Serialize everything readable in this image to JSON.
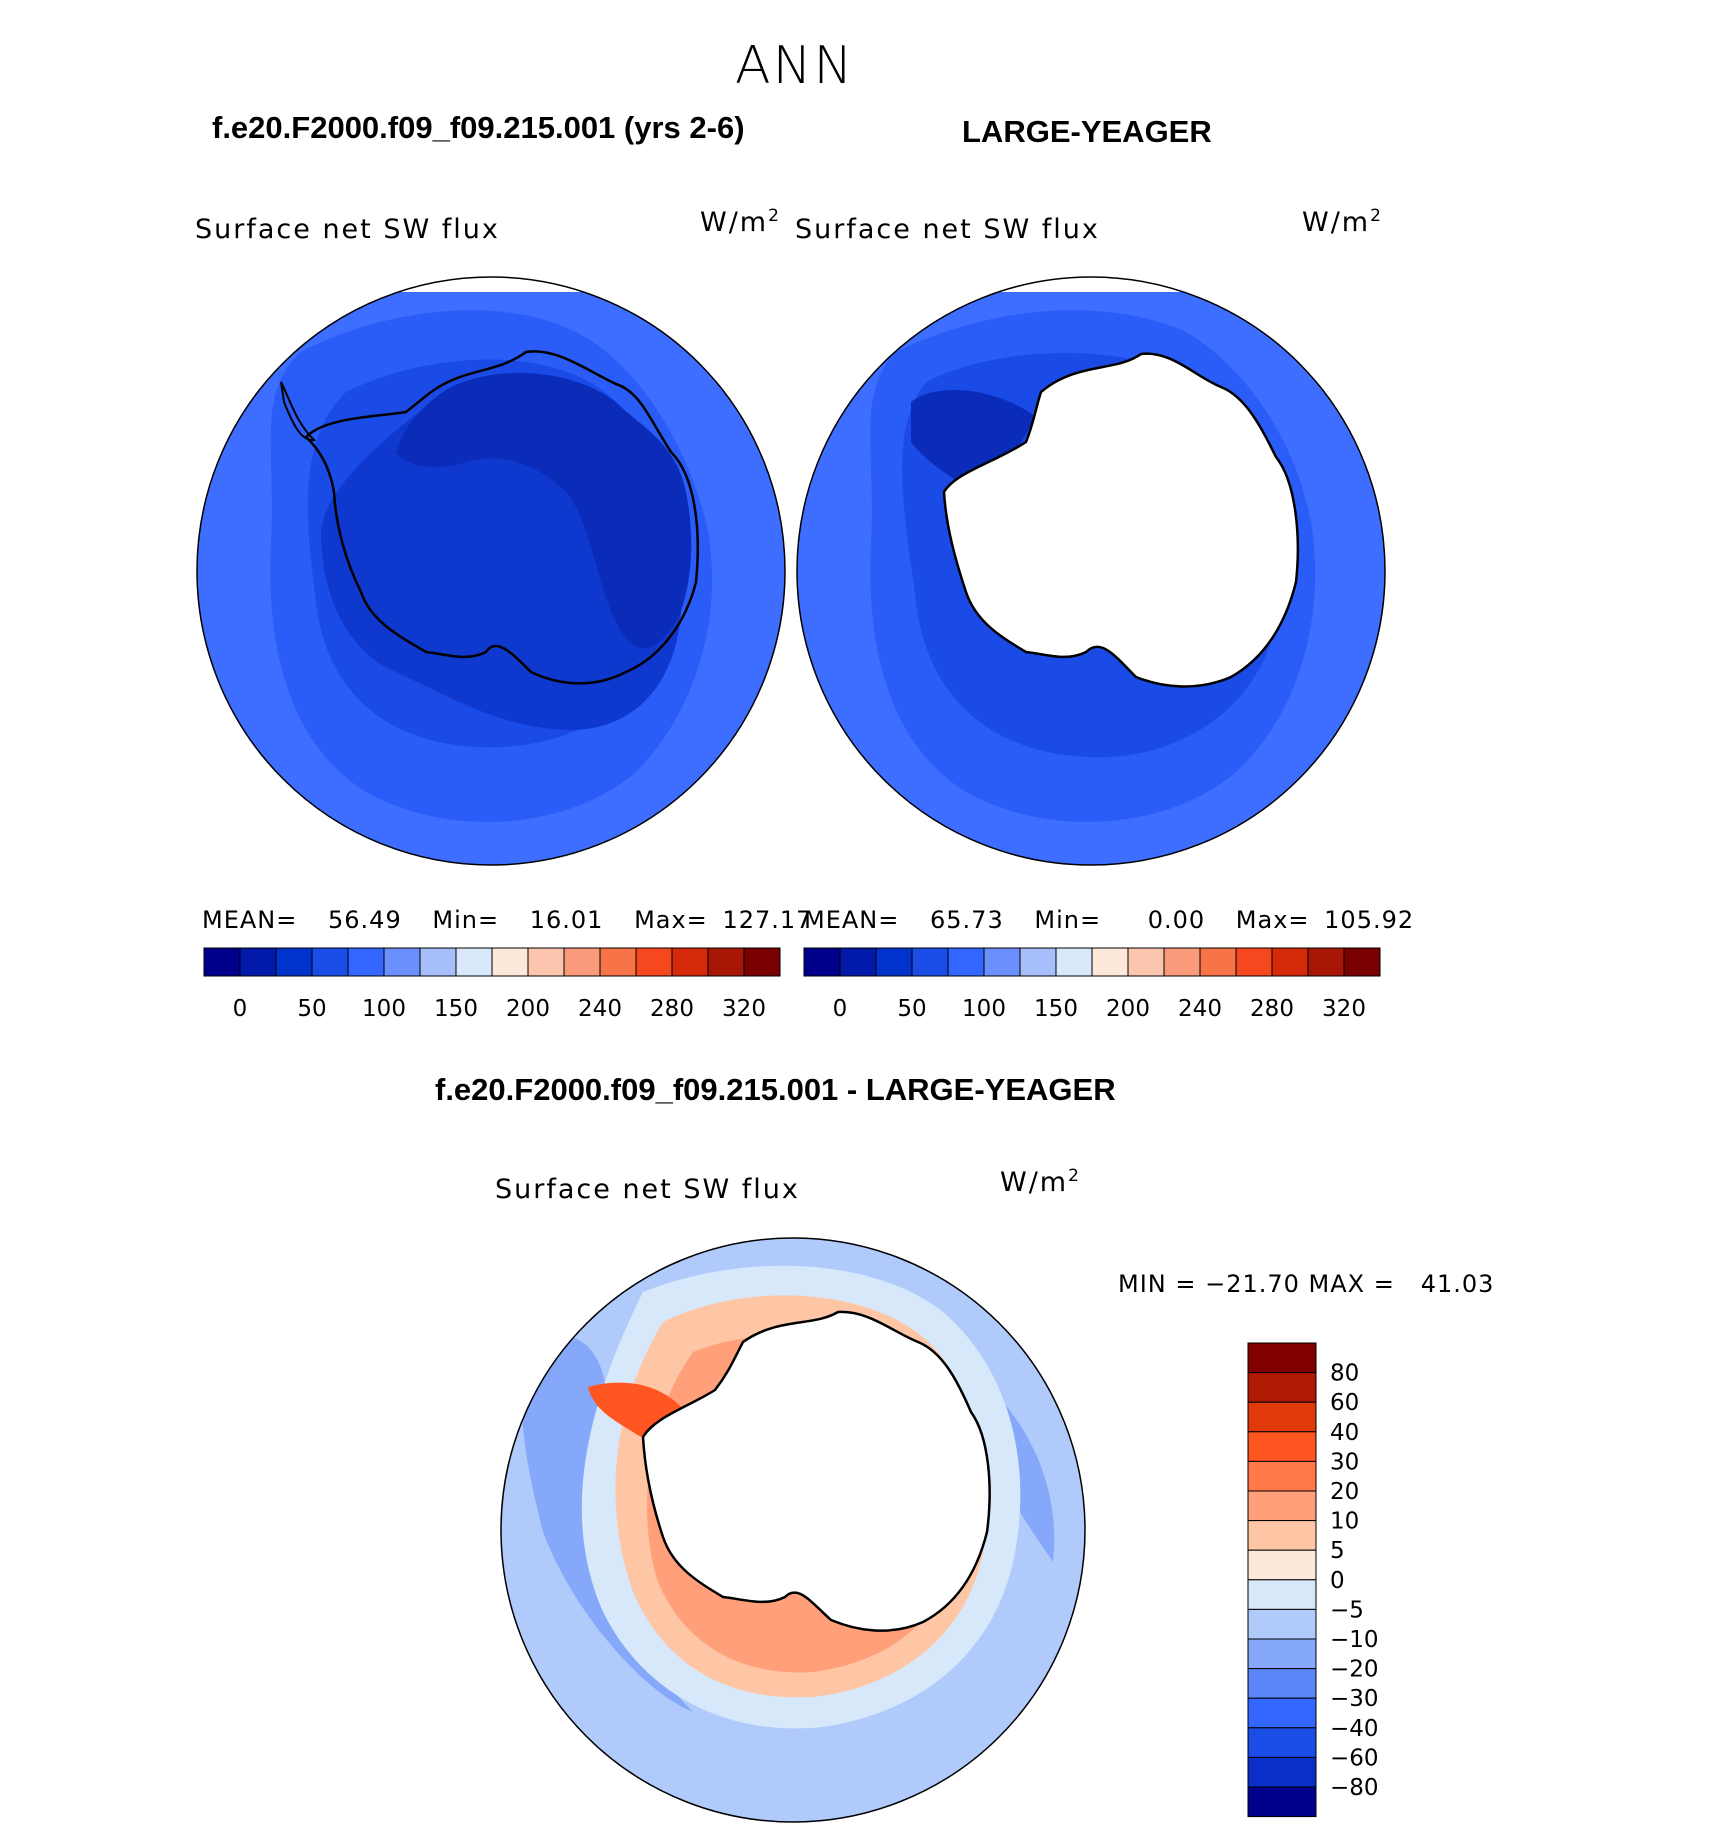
{
  "figure": {
    "season": "ANN",
    "left_case": "f.e20.F2000.f09_f09.215.001 (yrs 2-6)",
    "right_case": "LARGE-YEAGER",
    "diff_title": "f.e20.F2000.f09_f09.215.001 - LARGE-YEAGER"
  },
  "panels": {
    "left": {
      "variable": "Surface net SW flux",
      "units_base": "W/m",
      "units_exp": "2",
      "mean_label": "MEAN=",
      "mean": "56.49",
      "min_label": "Min=",
      "min": "16.01",
      "max_label": "Max=",
      "max": "127.17"
    },
    "right": {
      "variable": "Surface net SW flux",
      "units_base": "W/m",
      "units_exp": "2",
      "mean_label": "MEAN=",
      "mean": "65.73",
      "min_label": "Min=",
      "min": "0.00",
      "max_label": "Max=",
      "max": "105.92"
    },
    "diff": {
      "variable": "Surface net SW flux",
      "units_base": "W/m",
      "units_exp": "2",
      "minmax_text": "MIN = −21.70 MAX =   41.03"
    }
  },
  "colorbars": {
    "absolute": {
      "colors": [
        "#00008b",
        "#0019a8",
        "#0033cc",
        "#1a4ce6",
        "#3366ff",
        "#6b8ffc",
        "#a6bffa",
        "#d9e8fa",
        "#fde8d9",
        "#fbc6ad",
        "#f99b7a",
        "#f77448",
        "#f5481e",
        "#d52a0a",
        "#a81706",
        "#780000"
      ],
      "labels": [
        "0",
        "50",
        "100",
        "150",
        "200",
        "240",
        "280",
        "320"
      ]
    },
    "difference": {
      "colors": [
        "#800000",
        "#b01a05",
        "#e03a0a",
        "#ff5520",
        "#ff7a48",
        "#ffa07a",
        "#ffc6a6",
        "#fde8d9",
        "#d6e8fa",
        "#b0cbfb",
        "#86a8fa",
        "#5a86f7",
        "#3366ff",
        "#1a4ce6",
        "#0a2fc8",
        "#00008b"
      ],
      "labels": [
        "80",
        "60",
        "40",
        "30",
        "20",
        "10",
        "5",
        "0",
        "−5",
        "−10",
        "−20",
        "−30",
        "−40",
        "−60",
        "−80"
      ]
    }
  }
}
